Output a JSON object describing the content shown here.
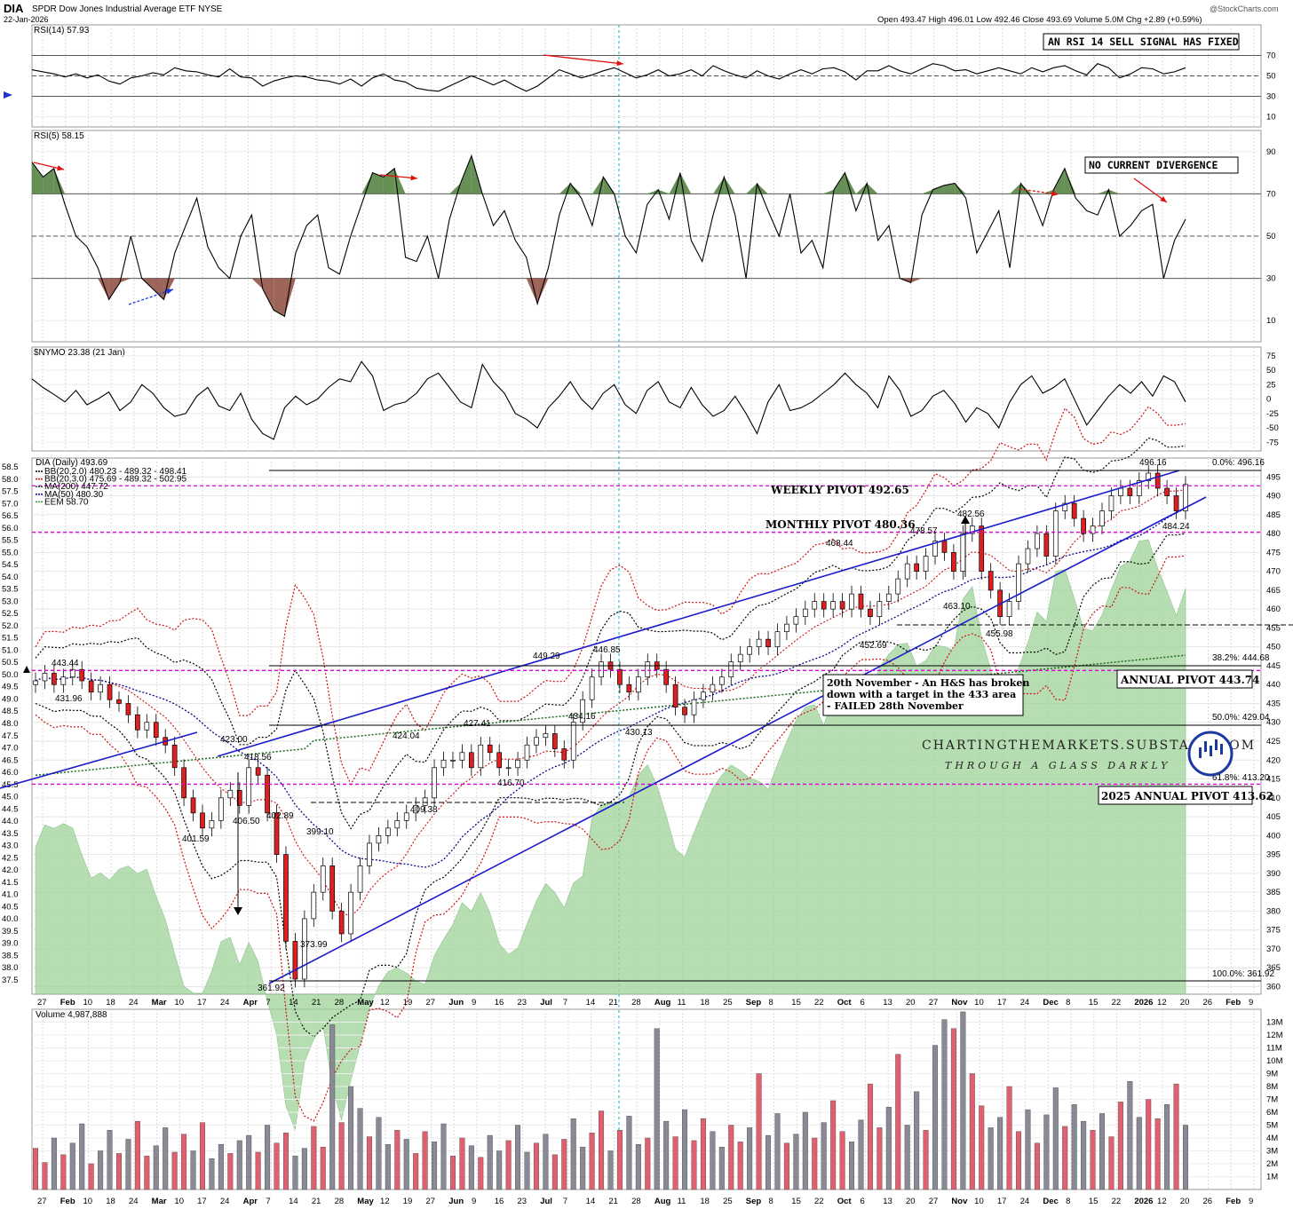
{
  "header": {
    "symbol": "DIA",
    "name": "SPDR Dow Jones Industrial Average ETF",
    "exchange": "NYSE",
    "date": "22-Jan-2026",
    "ohlc": "Open 493.47  High 496.01  Low 492.46  Close 493.69  Volume 5.0M  Chg +2.89 (+0.59%)",
    "watermark": "@StockCharts.com"
  },
  "chart_data": [
    {
      "type": "line",
      "title": "RSI(14) 57.93",
      "yticks": [
        10,
        30,
        50,
        70
      ],
      "ylim": [
        0,
        100
      ],
      "levels": [
        30,
        50,
        70
      ],
      "annotation": "AN RSI 14 SELL SIGNAL HAS FIXED",
      "series": [
        {
          "values": [
            56,
            54,
            52,
            49,
            52,
            48,
            51,
            45,
            42,
            48,
            50,
            53,
            51,
            58,
            55,
            54,
            51,
            49,
            57,
            49,
            48,
            40,
            45,
            48,
            50,
            49,
            46,
            45,
            42,
            47,
            40,
            48,
            52,
            46,
            44,
            38,
            36,
            35,
            40,
            45,
            50,
            46,
            41,
            46,
            40,
            35,
            40,
            48,
            56,
            52,
            48,
            51,
            55,
            58,
            53,
            48,
            51,
            56,
            50,
            52,
            56,
            50,
            60,
            55,
            51,
            48,
            55,
            50,
            47,
            52,
            56,
            52,
            57,
            58,
            54,
            46,
            55,
            55,
            60,
            55,
            52,
            57,
            62,
            60,
            55,
            56,
            52,
            55,
            58,
            55,
            52,
            58,
            54,
            58,
            60,
            55,
            51,
            62,
            58,
            48,
            52,
            58,
            57,
            52,
            54,
            58
          ]
        }
      ]
    },
    {
      "type": "line",
      "title": "RSI(5) 58.15",
      "yticks": [
        10,
        30,
        50,
        70,
        90
      ],
      "ylim": [
        0,
        100
      ],
      "levels": [
        30,
        50,
        70
      ],
      "annotation": "NO CURRENT DIVERGENCE",
      "series": [
        {
          "values": [
            85,
            78,
            82,
            65,
            50,
            45,
            35,
            20,
            28,
            50,
            30,
            25,
            20,
            42,
            55,
            68,
            45,
            35,
            30,
            50,
            60,
            25,
            15,
            12,
            42,
            55,
            60,
            35,
            32,
            50,
            65,
            80,
            78,
            82,
            40,
            38,
            50,
            30,
            58,
            75,
            88,
            70,
            55,
            62,
            48,
            40,
            18,
            35,
            60,
            75,
            68,
            55,
            78,
            70,
            50,
            42,
            65,
            72,
            58,
            80,
            48,
            38,
            60,
            78,
            60,
            30,
            75,
            62,
            50,
            70,
            42,
            48,
            35,
            72,
            80,
            62,
            75,
            48,
            55,
            30,
            28,
            60,
            72,
            74,
            75,
            68,
            42,
            52,
            62,
            35,
            75,
            68,
            55,
            72,
            82,
            68,
            62,
            60,
            72,
            50,
            55,
            62,
            65,
            30,
            48,
            58
          ]
        }
      ]
    },
    {
      "type": "line",
      "title": "$NYMO 23.38 (21 Jan)",
      "yticks": [
        -75,
        -50,
        -25,
        0,
        25,
        50,
        75
      ],
      "ylim": [
        -90,
        90
      ],
      "series": [
        {
          "values": [
            35,
            20,
            8,
            -5,
            15,
            -10,
            0,
            12,
            -20,
            -5,
            25,
            10,
            -15,
            -30,
            -25,
            5,
            20,
            -12,
            -20,
            10,
            -35,
            -60,
            -70,
            -15,
            5,
            -10,
            0,
            20,
            35,
            30,
            65,
            40,
            -20,
            -10,
            -5,
            10,
            35,
            45,
            20,
            -5,
            -15,
            60,
            30,
            10,
            -25,
            -35,
            -50,
            -15,
            5,
            30,
            0,
            -18,
            10,
            25,
            -10,
            -25,
            15,
            30,
            -5,
            -15,
            20,
            -10,
            -30,
            -20,
            5,
            -25,
            -60,
            -5,
            25,
            -20,
            -15,
            -5,
            10,
            25,
            45,
            25,
            10,
            -15,
            40,
            15,
            -30,
            -20,
            5,
            15,
            -8,
            -40,
            -15,
            -25,
            -50,
            -5,
            25,
            40,
            10,
            20,
            35,
            -5,
            -45,
            -20,
            5,
            25,
            10,
            30,
            5,
            40,
            30,
            -5
          ]
        }
      ]
    },
    {
      "type": "line",
      "title": "DIA (Daily) 493.69",
      "ylim": [
        358,
        500
      ],
      "yticks_right": [
        360,
        365,
        370,
        375,
        380,
        385,
        390,
        395,
        400,
        405,
        410,
        415,
        420,
        425,
        430,
        435,
        440,
        445,
        450,
        455,
        460,
        465,
        470,
        475,
        480,
        485,
        490,
        495
      ],
      "yticks_left": [
        "58.5",
        "58.0",
        "57.5",
        "57.0",
        "56.5",
        "56.0",
        "55.5",
        "55.0",
        "54.5",
        "54.0",
        "53.5",
        "53.0",
        "52.5",
        "52.0",
        "51.5",
        "51.0",
        "50.5",
        "50.0",
        "49.5",
        "49.0",
        "48.5",
        "48.0",
        "47.5",
        "47.0",
        "46.5",
        "46.0",
        "45.5",
        "45.0",
        "44.5",
        "44.0",
        "43.5",
        "43.0",
        "42.5",
        "42.0",
        "41.5",
        "41.0",
        "40.5",
        "40.0",
        "39.5",
        "39.0",
        "38.5",
        "38.0",
        "37.5"
      ],
      "legend": [
        "BB(20,2.0) 480.23 - 489.32 - 498.41",
        "BB(20,3.0) 475.69 - 489.32 - 502.95",
        "MA(200) 447.72",
        "MA(50) 480.30",
        "EEM 58.70"
      ],
      "series": [
        {
          "values": [
            441,
            443,
            440,
            442,
            444,
            441,
            438,
            440,
            436,
            435,
            432,
            428,
            430,
            426,
            424,
            418,
            410,
            406,
            402,
            404,
            410,
            412,
            408,
            418,
            416,
            406,
            395,
            372,
            362,
            378,
            385,
            392,
            380,
            374,
            385,
            392,
            398,
            400,
            402,
            404,
            406,
            408,
            410,
            418,
            420,
            420,
            422,
            418,
            424,
            422,
            418,
            418,
            420,
            424,
            426,
            427,
            423,
            420,
            430,
            436,
            442,
            446,
            444,
            440,
            438,
            442,
            446,
            444,
            440,
            434,
            432,
            436,
            438,
            440,
            442,
            446,
            448,
            450,
            452,
            450,
            454,
            456,
            458,
            460,
            462,
            460,
            462,
            460,
            464,
            460,
            458,
            462,
            464,
            468,
            472,
            470,
            474,
            478,
            475,
            470,
            480,
            482,
            470,
            465,
            458,
            462,
            472,
            476,
            480,
            474,
            486,
            488,
            484,
            480,
            482,
            486,
            490,
            492,
            490,
            494,
            496,
            492,
            490,
            486,
            493
          ]
        }
      ],
      "price_labels": [
        "443.44",
        "431.96",
        "423.00",
        "418.56",
        "401.59",
        "406.50",
        "402.89",
        "399.10",
        "373.99",
        "361.92",
        "424.04",
        "409.38",
        "427.41",
        "416.70",
        "449.29",
        "434.16",
        "446.85",
        "430.13",
        "468.44",
        "452.69",
        "463.10",
        "455.98",
        "478.57",
        "482.56",
        "496.16",
        "484.24"
      ],
      "pivots": [
        {
          "label": "WEEKLY PIVOT 492.65",
          "value": 492.65
        },
        {
          "label": "MONTHLY PIVOT 480.36",
          "value": 480.36
        },
        {
          "label": "ANNUAL PIVOT 443.74",
          "value": 443.74
        },
        {
          "label": "2025 ANNUAL PIVOT 413.62",
          "value": 413.62
        }
      ],
      "fib_labels": [
        "0.0%: 496.16",
        "38.2%: 444.68",
        "50.0%: 429.04",
        "61.8%: 413.20",
        "100.0%: 361.92"
      ],
      "annotation": [
        "20th November - An H&S has broken",
        "down with a target in the 433 area",
        "- FAILED 28th November"
      ],
      "brand": [
        "CHARTINGTHEMARKETS.SUBSTACK.COM",
        "THROUGH A GLASS DARKLY"
      ]
    },
    {
      "type": "bar",
      "title": "Volume 4,987,888",
      "yticks": [
        "1M",
        "2M",
        "3M",
        "4M",
        "5M",
        "6M",
        "7M",
        "8M",
        "9M",
        "10M",
        "11M",
        "12M",
        "13M"
      ],
      "ylim": [
        0,
        14
      ],
      "values": [
        3.2,
        2.1,
        4.0,
        2.7,
        3.6,
        5.1,
        2.0,
        3.0,
        4.6,
        2.8,
        3.9,
        5.3,
        2.6,
        3.4,
        4.8,
        2.9,
        4.3,
        3.0,
        5.2,
        2.4,
        3.5,
        2.8,
        3.8,
        4.2,
        2.9,
        5.0,
        3.6,
        4.4,
        2.6,
        3.2,
        4.9,
        3.3,
        12.8,
        5.2,
        8.0,
        6.3,
        4.1,
        5.6,
        3.5,
        4.6,
        3.9,
        2.8,
        4.5,
        3.7,
        5.1,
        2.6,
        4.0,
        3.4,
        2.5,
        4.2,
        3.0,
        3.8,
        5.0,
        2.9,
        3.6,
        4.3,
        2.7,
        3.9,
        5.5,
        3.3,
        4.4,
        6.1,
        3.0,
        4.6,
        5.7,
        3.5,
        4.0,
        12.5,
        5.3,
        4.1,
        6.2,
        3.8,
        5.5,
        4.5,
        3.3,
        5.0,
        3.7,
        4.8,
        9.0,
        4.2,
        5.9,
        3.6,
        4.3,
        6.0,
        4.0,
        5.2,
        6.9,
        4.5,
        3.7,
        5.4,
        8.2,
        4.8,
        6.4,
        10.5,
        5.0,
        7.6,
        4.6,
        11.2,
        13.2,
        12.5,
        13.8,
        9.0,
        6.5,
        4.8,
        5.6,
        8.0,
        4.5,
        6.2,
        3.6,
        5.8,
        7.9,
        4.9,
        6.6,
        5.3,
        4.6,
        5.9,
        4.1,
        6.8,
        8.4,
        5.6,
        7.0,
        5.5,
        6.6,
        8.2,
        5.0
      ],
      "x_labels": [
        "27",
        "Feb",
        "10",
        "18",
        "24",
        "Mar",
        "10",
        "17",
        "24",
        "Apr",
        "7",
        "14",
        "21",
        "28",
        "May",
        "12",
        "19",
        "27",
        "Jun",
        "9",
        "16",
        "23",
        "Jul",
        "7",
        "14",
        "21",
        "28",
        "Aug",
        "11",
        "18",
        "25",
        "Sep",
        "8",
        "15",
        "22",
        "Oct",
        "6",
        "13",
        "20",
        "27",
        "Nov",
        "10",
        "17",
        "24",
        "Dec",
        "8",
        "15",
        "22",
        "2026",
        "12",
        "20",
        "26",
        "Feb",
        "9"
      ]
    }
  ]
}
